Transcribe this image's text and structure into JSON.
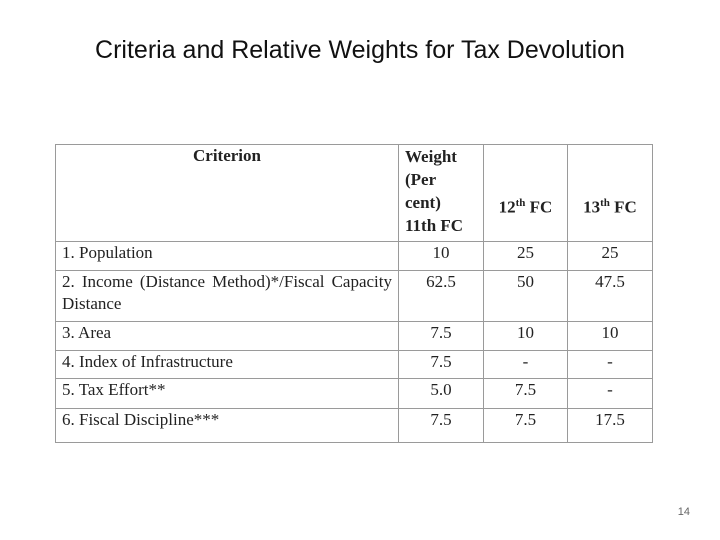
{
  "title": "Criteria and Relative Weights for Tax Devolution",
  "table": {
    "header": {
      "criterion": "Criterion",
      "weight_lines": [
        "Weight",
        "(Per",
        "cent)",
        "11th FC"
      ],
      "fc12": {
        "number": "12",
        "suffix": "th",
        "rest": "FC"
      },
      "fc13": {
        "number": "13",
        "suffix": "th",
        "rest": "FC"
      }
    },
    "rows": [
      [
        "1. Population",
        "10",
        "25",
        "25"
      ],
      [
        "2. Income (Distance Method)*/Fiscal Capacity Distance",
        "62.5",
        "50",
        "47.5"
      ],
      [
        "3. Area",
        "7.5",
        "10",
        "10"
      ],
      [
        "4. Index of Infrastructure",
        "7.5",
        "-",
        "-"
      ],
      [
        "5. Tax Effort**",
        "5.0",
        "7.5",
        "-"
      ],
      [
        "6. Fiscal Discipline***",
        "7.5",
        "7.5",
        "17.5"
      ]
    ]
  },
  "page_number": "14"
}
